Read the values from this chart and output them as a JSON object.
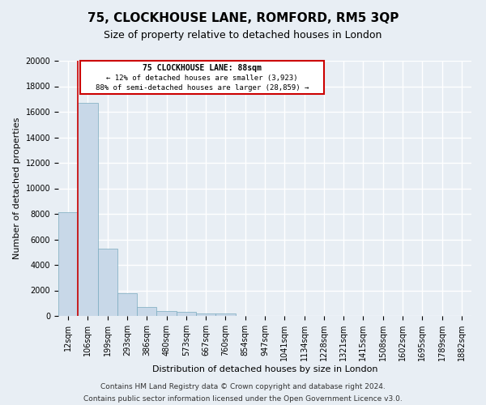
{
  "title": "75, CLOCKHOUSE LANE, ROMFORD, RM5 3QP",
  "subtitle": "Size of property relative to detached houses in London",
  "xlabel": "Distribution of detached houses by size in London",
  "ylabel": "Number of detached properties",
  "bar_color": "#c8d8e8",
  "bar_edge_color": "#7aabbf",
  "annotation_box_color": "#cc0000",
  "annotation_title": "75 CLOCKHOUSE LANE: 88sqm",
  "annotation_line1": "← 12% of detached houses are smaller (3,923)",
  "annotation_line2": "88% of semi-detached houses are larger (28,859) →",
  "categories": [
    "12sqm",
    "106sqm",
    "199sqm",
    "293sqm",
    "386sqm",
    "480sqm",
    "573sqm",
    "667sqm",
    "760sqm",
    "854sqm",
    "947sqm",
    "1041sqm",
    "1134sqm",
    "1228sqm",
    "1321sqm",
    "1415sqm",
    "1508sqm",
    "1602sqm",
    "1695sqm",
    "1789sqm",
    "1882sqm"
  ],
  "values": [
    8100,
    16700,
    5300,
    1750,
    680,
    380,
    290,
    200,
    170,
    0,
    0,
    0,
    0,
    0,
    0,
    0,
    0,
    0,
    0,
    0,
    0
  ],
  "ylim": [
    0,
    20000
  ],
  "yticks": [
    0,
    2000,
    4000,
    6000,
    8000,
    10000,
    12000,
    14000,
    16000,
    18000,
    20000
  ],
  "red_line_x": 1.0,
  "footer_line1": "Contains HM Land Registry data © Crown copyright and database right 2024.",
  "footer_line2": "Contains public sector information licensed under the Open Government Licence v3.0.",
  "bg_color": "#e8eef4",
  "plot_bg_color": "#e8eef4",
  "grid_color": "#ffffff",
  "title_fontsize": 11,
  "subtitle_fontsize": 9,
  "axis_label_fontsize": 8,
  "tick_fontsize": 7,
  "footer_fontsize": 6.5
}
